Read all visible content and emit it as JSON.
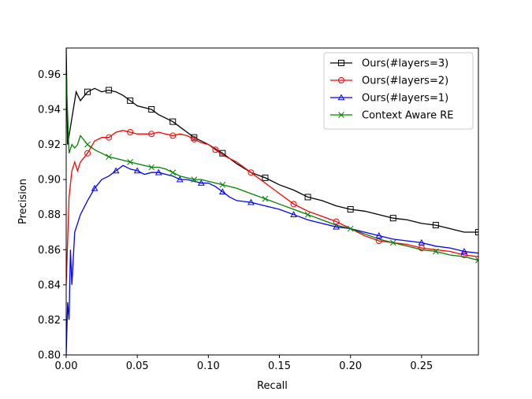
{
  "chart_data": {
    "type": "line",
    "xlabel": "Recall",
    "ylabel": "Precision",
    "xlim": [
      0.0,
      0.29
    ],
    "ylim": [
      0.8,
      0.975
    ],
    "xticks": [
      "0.00",
      "0.05",
      "0.10",
      "0.15",
      "0.20",
      "0.25"
    ],
    "yticks": [
      "0.80",
      "0.82",
      "0.84",
      "0.86",
      "0.88",
      "0.90",
      "0.92",
      "0.94",
      "0.96"
    ],
    "grid": false,
    "legend_position": "top-right",
    "series": [
      {
        "name": "Ours(#layers=3)",
        "color": "#000000",
        "marker": "square",
        "points": [
          [
            0.0,
            0.975
          ],
          [
            0.001,
            0.92
          ],
          [
            0.003,
            0.93
          ],
          [
            0.005,
            0.94
          ],
          [
            0.007,
            0.95
          ],
          [
            0.01,
            0.945
          ],
          [
            0.015,
            0.95
          ],
          [
            0.02,
            0.952
          ],
          [
            0.025,
            0.95
          ],
          [
            0.03,
            0.951
          ],
          [
            0.035,
            0.95
          ],
          [
            0.04,
            0.948
          ],
          [
            0.045,
            0.945
          ],
          [
            0.05,
            0.942
          ],
          [
            0.055,
            0.941
          ],
          [
            0.06,
            0.94
          ],
          [
            0.065,
            0.937
          ],
          [
            0.07,
            0.935
          ],
          [
            0.075,
            0.933
          ],
          [
            0.08,
            0.93
          ],
          [
            0.085,
            0.927
          ],
          [
            0.09,
            0.924
          ],
          [
            0.095,
            0.922
          ],
          [
            0.1,
            0.92
          ],
          [
            0.11,
            0.915
          ],
          [
            0.12,
            0.909
          ],
          [
            0.13,
            0.904
          ],
          [
            0.14,
            0.901
          ],
          [
            0.15,
            0.897
          ],
          [
            0.16,
            0.894
          ],
          [
            0.17,
            0.89
          ],
          [
            0.18,
            0.888
          ],
          [
            0.19,
            0.885
          ],
          [
            0.2,
            0.883
          ],
          [
            0.21,
            0.882
          ],
          [
            0.22,
            0.88
          ],
          [
            0.23,
            0.878
          ],
          [
            0.24,
            0.877
          ],
          [
            0.25,
            0.875
          ],
          [
            0.26,
            0.874
          ],
          [
            0.27,
            0.872
          ],
          [
            0.28,
            0.87
          ],
          [
            0.29,
            0.87
          ]
        ]
      },
      {
        "name": "Ours(#layers=2)",
        "color": "#ff0000",
        "marker": "circle",
        "points": [
          [
            0.0,
            0.84
          ],
          [
            0.002,
            0.89
          ],
          [
            0.004,
            0.905
          ],
          [
            0.006,
            0.91
          ],
          [
            0.008,
            0.905
          ],
          [
            0.01,
            0.91
          ],
          [
            0.015,
            0.915
          ],
          [
            0.02,
            0.922
          ],
          [
            0.025,
            0.924
          ],
          [
            0.03,
            0.924
          ],
          [
            0.035,
            0.927
          ],
          [
            0.04,
            0.928
          ],
          [
            0.045,
            0.927
          ],
          [
            0.05,
            0.926
          ],
          [
            0.055,
            0.926
          ],
          [
            0.06,
            0.926
          ],
          [
            0.065,
            0.927
          ],
          [
            0.07,
            0.926
          ],
          [
            0.075,
            0.925
          ],
          [
            0.08,
            0.926
          ],
          [
            0.085,
            0.925
          ],
          [
            0.09,
            0.923
          ],
          [
            0.095,
            0.921
          ],
          [
            0.1,
            0.92
          ],
          [
            0.105,
            0.917
          ],
          [
            0.11,
            0.914
          ],
          [
            0.12,
            0.91
          ],
          [
            0.13,
            0.904
          ],
          [
            0.14,
            0.898
          ],
          [
            0.15,
            0.892
          ],
          [
            0.16,
            0.886
          ],
          [
            0.17,
            0.882
          ],
          [
            0.18,
            0.879
          ],
          [
            0.19,
            0.876
          ],
          [
            0.2,
            0.872
          ],
          [
            0.21,
            0.868
          ],
          [
            0.22,
            0.865
          ],
          [
            0.23,
            0.864
          ],
          [
            0.24,
            0.863
          ],
          [
            0.25,
            0.861
          ],
          [
            0.26,
            0.86
          ],
          [
            0.27,
            0.859
          ],
          [
            0.28,
            0.857
          ],
          [
            0.29,
            0.856
          ]
        ]
      },
      {
        "name": "Ours(#layers=1)",
        "color": "#0000ff",
        "marker": "triangle",
        "points": [
          [
            0.0,
            0.8
          ],
          [
            0.001,
            0.83
          ],
          [
            0.002,
            0.82
          ],
          [
            0.003,
            0.86
          ],
          [
            0.004,
            0.84
          ],
          [
            0.006,
            0.87
          ],
          [
            0.008,
            0.875
          ],
          [
            0.01,
            0.88
          ],
          [
            0.015,
            0.888
          ],
          [
            0.02,
            0.895
          ],
          [
            0.025,
            0.9
          ],
          [
            0.03,
            0.902
          ],
          [
            0.035,
            0.905
          ],
          [
            0.04,
            0.908
          ],
          [
            0.045,
            0.906
          ],
          [
            0.05,
            0.905
          ],
          [
            0.055,
            0.903
          ],
          [
            0.06,
            0.904
          ],
          [
            0.065,
            0.904
          ],
          [
            0.07,
            0.903
          ],
          [
            0.075,
            0.902
          ],
          [
            0.08,
            0.9
          ],
          [
            0.085,
            0.9
          ],
          [
            0.09,
            0.899
          ],
          [
            0.095,
            0.898
          ],
          [
            0.1,
            0.898
          ],
          [
            0.105,
            0.896
          ],
          [
            0.11,
            0.893
          ],
          [
            0.115,
            0.89
          ],
          [
            0.12,
            0.888
          ],
          [
            0.13,
            0.887
          ],
          [
            0.14,
            0.885
          ],
          [
            0.15,
            0.883
          ],
          [
            0.16,
            0.88
          ],
          [
            0.17,
            0.877
          ],
          [
            0.18,
            0.875
          ],
          [
            0.19,
            0.873
          ],
          [
            0.2,
            0.872
          ],
          [
            0.21,
            0.87
          ],
          [
            0.22,
            0.868
          ],
          [
            0.23,
            0.866
          ],
          [
            0.24,
            0.865
          ],
          [
            0.25,
            0.864
          ],
          [
            0.26,
            0.862
          ],
          [
            0.27,
            0.861
          ],
          [
            0.28,
            0.859
          ],
          [
            0.29,
            0.858
          ]
        ]
      },
      {
        "name": "Context Aware RE",
        "color": "#008000",
        "marker": "x",
        "points": [
          [
            0.0,
            0.96
          ],
          [
            0.002,
            0.915
          ],
          [
            0.004,
            0.92
          ],
          [
            0.006,
            0.918
          ],
          [
            0.008,
            0.92
          ],
          [
            0.01,
            0.925
          ],
          [
            0.015,
            0.92
          ],
          [
            0.02,
            0.917
          ],
          [
            0.025,
            0.915
          ],
          [
            0.03,
            0.913
          ],
          [
            0.035,
            0.912
          ],
          [
            0.04,
            0.911
          ],
          [
            0.045,
            0.91
          ],
          [
            0.05,
            0.909
          ],
          [
            0.055,
            0.908
          ],
          [
            0.06,
            0.907
          ],
          [
            0.065,
            0.907
          ],
          [
            0.07,
            0.906
          ],
          [
            0.075,
            0.904
          ],
          [
            0.08,
            0.902
          ],
          [
            0.085,
            0.901
          ],
          [
            0.09,
            0.9
          ],
          [
            0.095,
            0.9
          ],
          [
            0.1,
            0.899
          ],
          [
            0.11,
            0.897
          ],
          [
            0.12,
            0.895
          ],
          [
            0.13,
            0.892
          ],
          [
            0.14,
            0.889
          ],
          [
            0.15,
            0.886
          ],
          [
            0.16,
            0.883
          ],
          [
            0.17,
            0.88
          ],
          [
            0.18,
            0.877
          ],
          [
            0.19,
            0.874
          ],
          [
            0.2,
            0.872
          ],
          [
            0.21,
            0.869
          ],
          [
            0.22,
            0.866
          ],
          [
            0.23,
            0.864
          ],
          [
            0.24,
            0.862
          ],
          [
            0.25,
            0.86
          ],
          [
            0.26,
            0.859
          ],
          [
            0.27,
            0.857
          ],
          [
            0.28,
            0.856
          ],
          [
            0.29,
            0.854
          ]
        ]
      }
    ]
  }
}
